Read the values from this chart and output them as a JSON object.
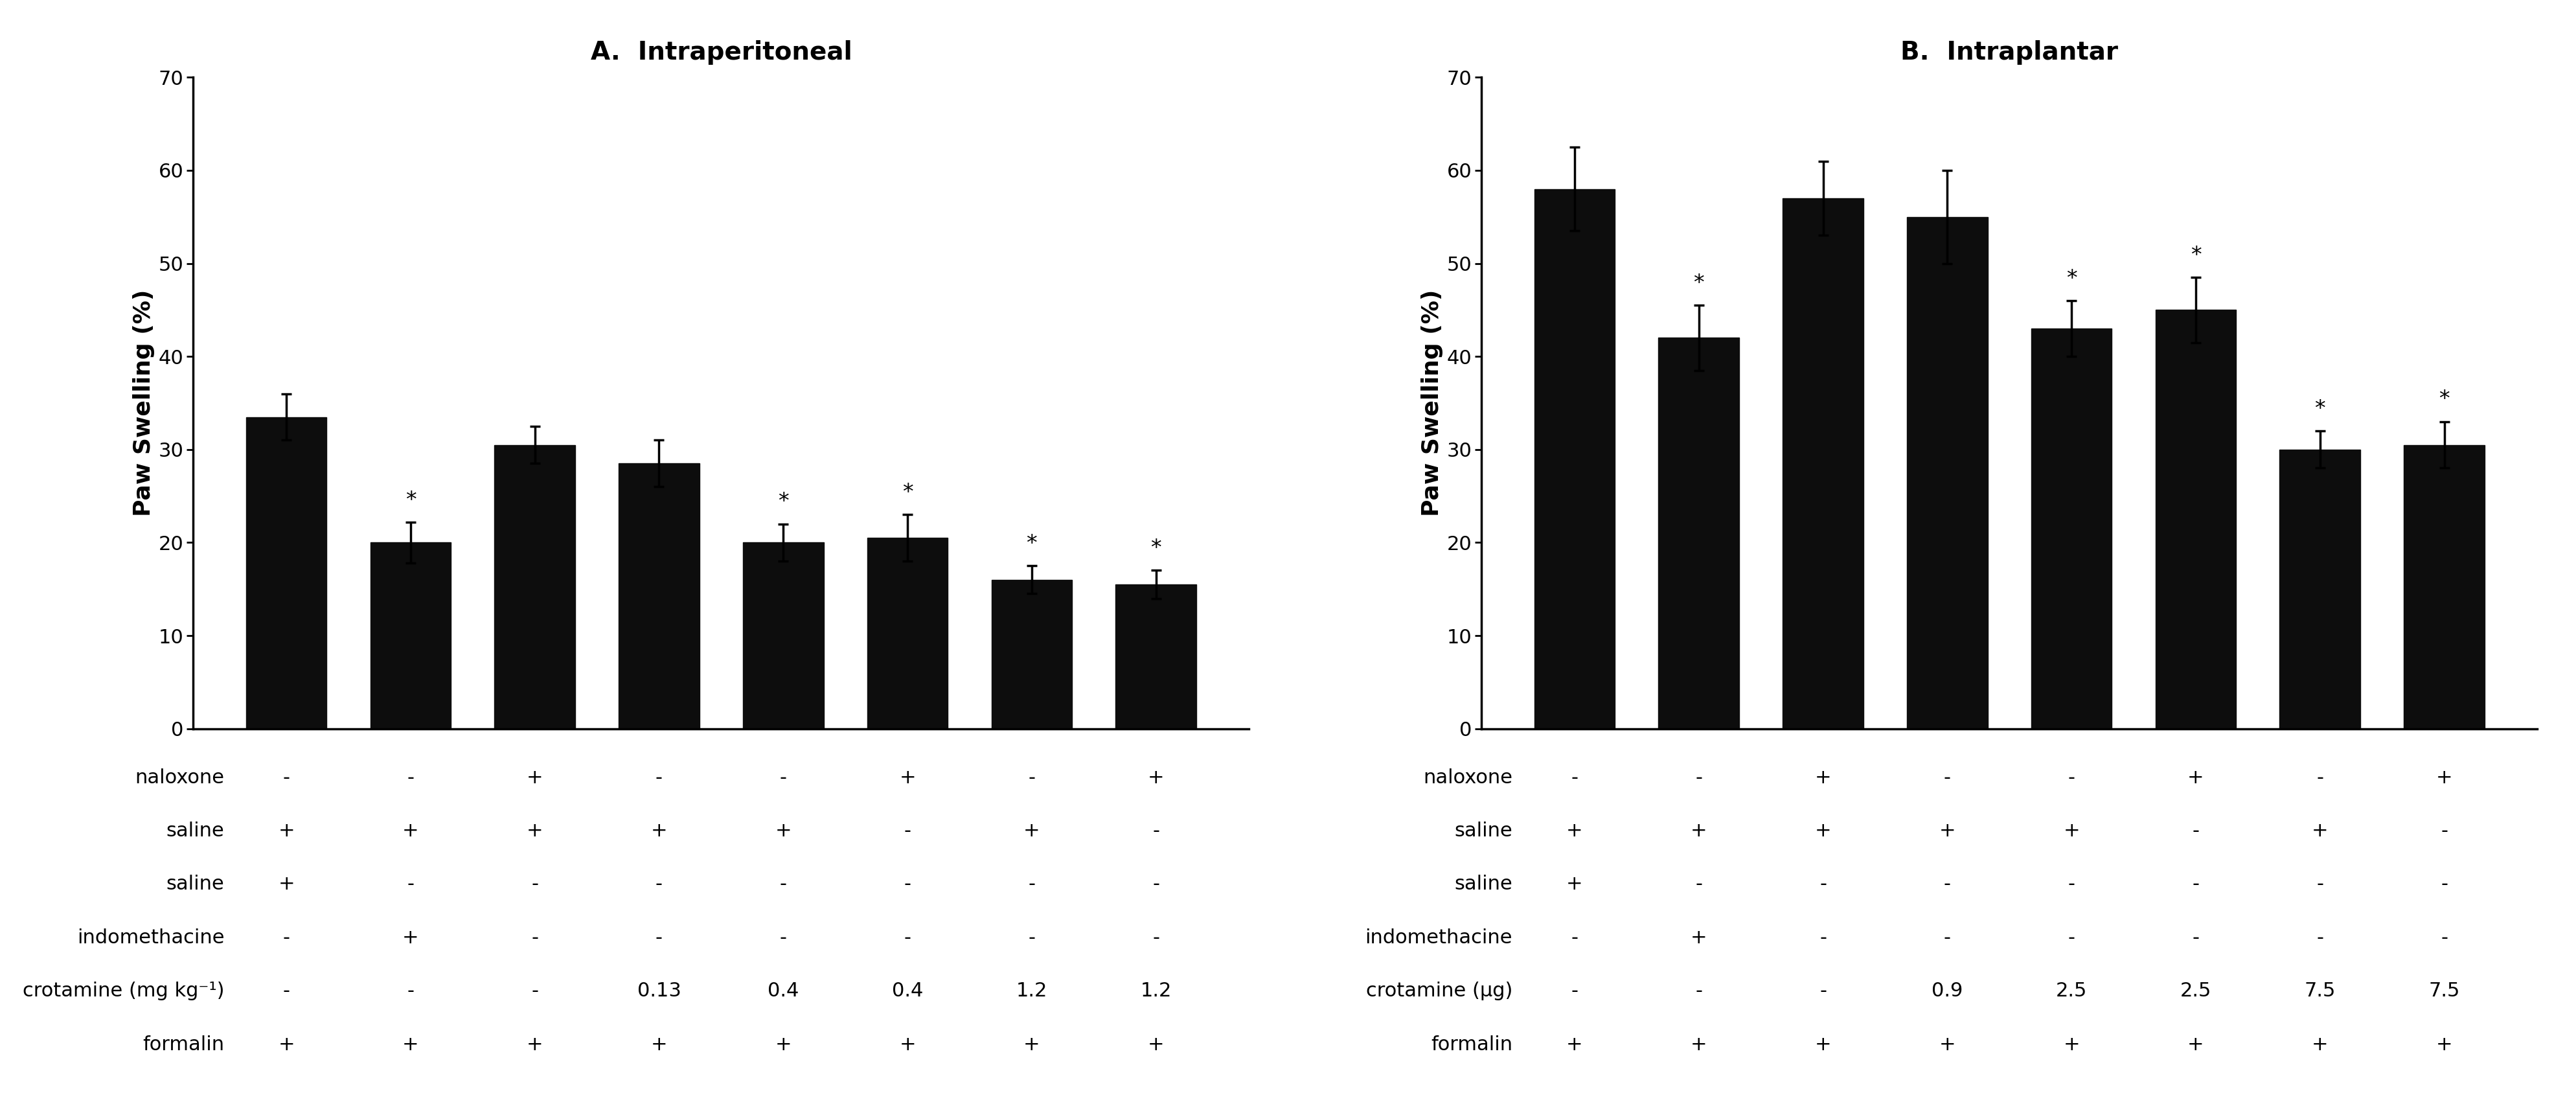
{
  "panel_A": {
    "title": "A.  Intraperitoneal",
    "ylabel": "Paw Swelling (%)",
    "ylim": [
      0,
      70
    ],
    "yticks": [
      0,
      10,
      20,
      30,
      40,
      50,
      60,
      70
    ],
    "bar_values": [
      33.5,
      20.0,
      30.5,
      28.5,
      20.0,
      20.5,
      16.0,
      15.5
    ],
    "bar_errors": [
      2.5,
      2.2,
      2.0,
      2.5,
      2.0,
      2.5,
      1.5,
      1.5
    ],
    "significant": [
      false,
      true,
      false,
      false,
      true,
      true,
      true,
      true
    ],
    "table_rows": [
      [
        "naloxone",
        "-",
        "-",
        "+",
        "-",
        "-",
        "+",
        "-",
        "+"
      ],
      [
        "saline",
        "+",
        "+",
        "+",
        "+",
        "+",
        "-",
        "+",
        "-"
      ],
      [
        "saline",
        "+",
        "-",
        "-",
        "-",
        "-",
        "-",
        "-",
        "-"
      ],
      [
        "indomethacine",
        "-",
        "+",
        "-",
        "-",
        "-",
        "-",
        "-",
        "-"
      ],
      [
        "crotamine (mg kg⁻¹)",
        "-",
        "-",
        "-",
        "0.13",
        "0.4",
        "0.4",
        "1.2",
        "1.2"
      ],
      [
        "formalin",
        "+",
        "+",
        "+",
        "+",
        "+",
        "+",
        "+",
        "+"
      ]
    ]
  },
  "panel_B": {
    "title": "B.  Intraplantar",
    "ylabel": "Paw Swelling (%)",
    "ylim": [
      0,
      70
    ],
    "yticks": [
      0,
      10,
      20,
      30,
      40,
      50,
      60,
      70
    ],
    "bar_values": [
      58.0,
      42.0,
      57.0,
      55.0,
      43.0,
      45.0,
      30.0,
      30.5
    ],
    "bar_errors": [
      4.5,
      3.5,
      4.0,
      5.0,
      3.0,
      3.5,
      2.0,
      2.5
    ],
    "significant": [
      false,
      true,
      false,
      false,
      true,
      true,
      true,
      true
    ],
    "table_rows": [
      [
        "naloxone",
        "-",
        "-",
        "+",
        "-",
        "-",
        "+",
        "-",
        "+"
      ],
      [
        "saline",
        "+",
        "+",
        "+",
        "+",
        "+",
        "-",
        "+",
        "-"
      ],
      [
        "saline",
        "+",
        "-",
        "-",
        "-",
        "-",
        "-",
        "-",
        "-"
      ],
      [
        "indomethacine",
        "-",
        "+",
        "-",
        "-",
        "-",
        "-",
        "-",
        "-"
      ],
      [
        "crotamine (μg)",
        "-",
        "-",
        "-",
        "0.9",
        "2.5",
        "2.5",
        "7.5",
        "7.5"
      ],
      [
        "formalin",
        "+",
        "+",
        "+",
        "+",
        "+",
        "+",
        "+",
        "+"
      ]
    ]
  },
  "bar_color": "#0d0d0d",
  "bar_width": 0.65,
  "error_capsize": 6,
  "error_linewidth": 2.5,
  "star_fontsize": 24,
  "title_fontsize": 28,
  "ylabel_fontsize": 26,
  "tick_fontsize": 22,
  "table_label_fontsize": 22,
  "table_value_fontsize": 22
}
